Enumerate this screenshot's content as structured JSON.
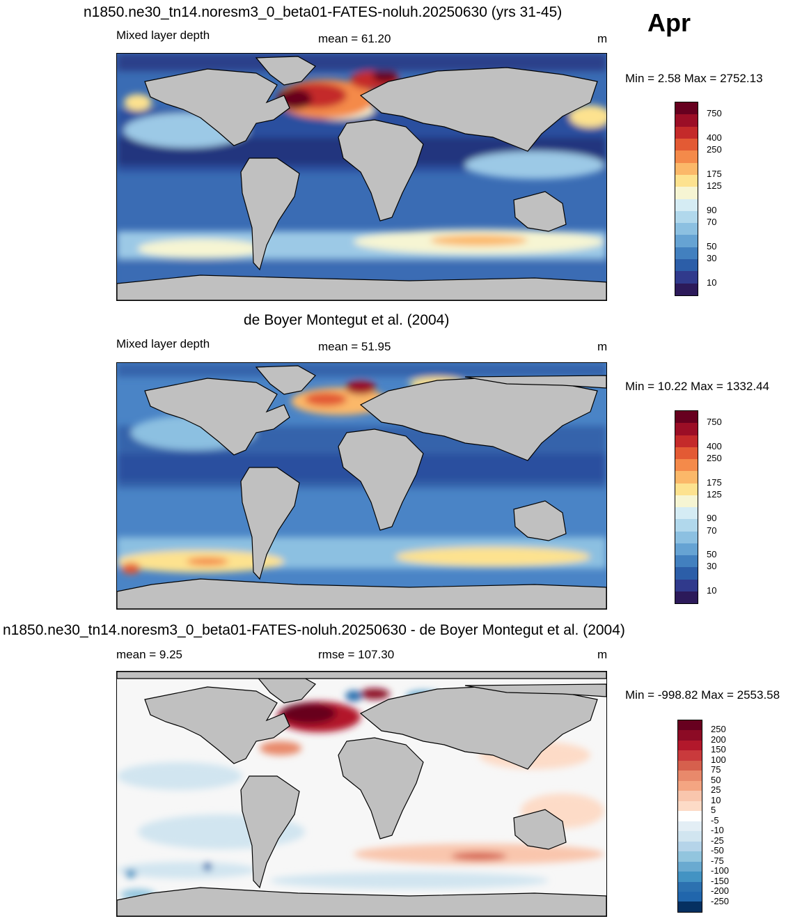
{
  "header": {
    "title": "n1850.ne30_tn14.noresm3_0_beta01-FATES-noluh.20250630 (yrs 31-45)",
    "month": "Apr"
  },
  "panels": [
    {
      "variable": "Mixed layer depth",
      "stat": "mean =  61.20",
      "unit": "m",
      "minmax": "Min =   2.58 Max = 2752.13",
      "colorbar": {
        "labels": [
          "750",
          "400",
          "250",
          "175",
          "125",
          "90",
          "70",
          "50",
          "30",
          "10"
        ],
        "colors": [
          "#67001f",
          "#9b0e26",
          "#c42a2a",
          "#e35a34",
          "#f48a4a",
          "#fbb869",
          "#fde28f",
          "#f6f5d3",
          "#d5ecf4",
          "#b1d8ec",
          "#8cc0e1",
          "#66a3d3",
          "#4280bf",
          "#2c5ea8",
          "#303a8c",
          "#2c1a5a"
        ]
      },
      "map_palette": {
        "ocean_low": "#2c4f9f",
        "ocean_mid": "#4f8ac9",
        "ocean_high": "#9cc9e6",
        "warm": "#f9e7a0",
        "hot": "#f38e4b",
        "extreme": "#8f0d25",
        "land": "#c0c0c0"
      }
    },
    {
      "heading": "de Boyer Montegut et al. (2004)",
      "variable": "Mixed layer depth",
      "stat": "mean =  51.95",
      "unit": "m",
      "minmax": "Min =  10.22 Max = 1332.44",
      "colorbar": {
        "labels": [
          "750",
          "400",
          "250",
          "175",
          "125",
          "90",
          "70",
          "50",
          "30",
          "10"
        ],
        "colors": [
          "#67001f",
          "#9b0e26",
          "#c42a2a",
          "#e35a34",
          "#f48a4a",
          "#fbb869",
          "#fde28f",
          "#f6f5d3",
          "#d5ecf4",
          "#b1d8ec",
          "#8cc0e1",
          "#66a3d3",
          "#4280bf",
          "#2c5ea8",
          "#303a8c",
          "#2c1a5a"
        ]
      }
    },
    {
      "heading": "n1850.ne30_tn14.noresm3_0_beta01-FATES-noluh.20250630 - de Boyer Montegut et al. (2004)",
      "stat_left": "mean =   9.25",
      "stat": "rmse = 107.30",
      "unit": "m",
      "minmax": "Min = -998.82 Max = 2553.58",
      "colorbar": {
        "labels": [
          "250",
          "200",
          "150",
          "100",
          "75",
          "50",
          "25",
          "10",
          "5",
          "-5",
          "-10",
          "-25",
          "-50",
          "-75",
          "-100",
          "-150",
          "-200",
          "-250"
        ],
        "colors": [
          "#67001f",
          "#8c0b25",
          "#b2182b",
          "#c93a3c",
          "#d6604d",
          "#e8896b",
          "#f4a582",
          "#f9c6ad",
          "#fddbc7",
          "#ffffff",
          "#e3eef5",
          "#d1e5f0",
          "#b5d4e9",
          "#92c5de",
          "#6aaad0",
          "#4393c3",
          "#2c71b0",
          "#2166ac",
          "#053061"
        ]
      }
    }
  ]
}
